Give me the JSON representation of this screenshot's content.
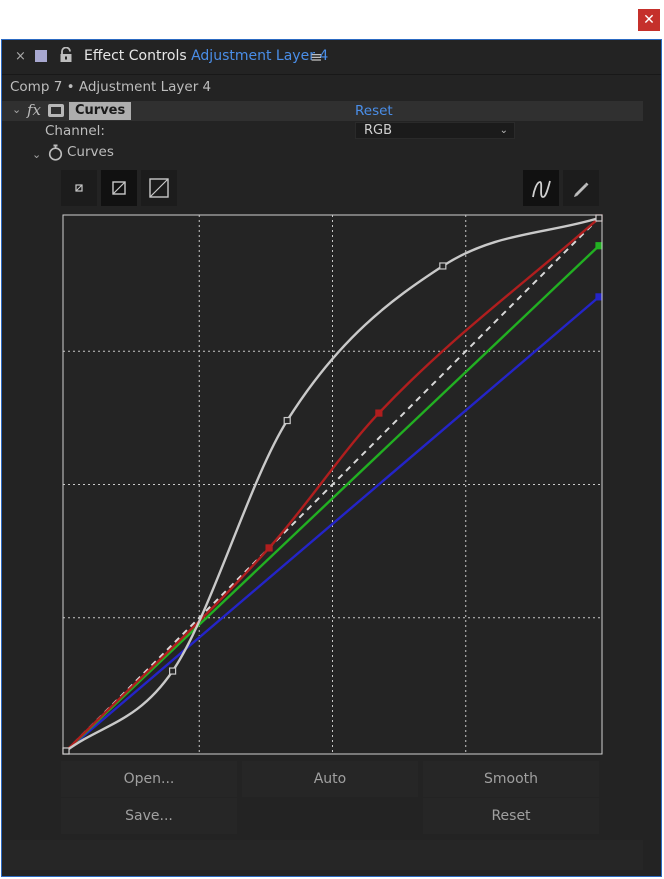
{
  "window": {
    "close_glyph": "✕"
  },
  "panel": {
    "tab": {
      "close_glyph": "×",
      "title_prefix": "Effect Controls ",
      "title_layer": "Adjustment Layer 4",
      "menu_glyph": "≡"
    },
    "breadcrumb": "Comp 7 • Adjustment Layer 4"
  },
  "effect": {
    "fx_glyph": "fx",
    "name": "Curves",
    "reset_label": "Reset",
    "expand_glyph": "⌄",
    "channel_label": "Channel:",
    "channel_value": "RGB",
    "curves_label": "Curves"
  },
  "toolbar": {
    "left_tools": [
      "size-small-icon",
      "size-medium-icon",
      "size-large-icon"
    ],
    "right_tools": [
      "bezier-curve-icon",
      "pencil-icon"
    ]
  },
  "graph": {
    "colors": {
      "rgb": "#c9c9c9",
      "red": "#b01e1e",
      "green": "#22b022",
      "blue": "#2424c8",
      "diagonal": "#d8d8d8",
      "grid": "#c8c8c8",
      "border": "#d0d0d0"
    },
    "curves": [
      {
        "channel": "rgb",
        "points": [
          [
            0,
            0
          ],
          [
            0.2,
            0.15
          ],
          [
            0.415,
            0.62
          ],
          [
            0.707,
            0.91
          ],
          [
            1,
            1
          ]
        ]
      },
      {
        "channel": "red",
        "points": [
          [
            0,
            0
          ],
          [
            0.381,
            0.381
          ],
          [
            0.587,
            0.634
          ],
          [
            1,
            1
          ]
        ]
      },
      {
        "channel": "green",
        "points": [
          [
            0,
            0
          ],
          [
            1,
            0.948
          ]
        ]
      },
      {
        "channel": "blue",
        "points": [
          [
            0,
            0
          ],
          [
            1,
            0.852
          ]
        ]
      }
    ]
  },
  "buttons": {
    "open": "Open...",
    "auto": "Auto",
    "smooth": "Smooth",
    "save": "Save...",
    "reset": "Reset"
  }
}
